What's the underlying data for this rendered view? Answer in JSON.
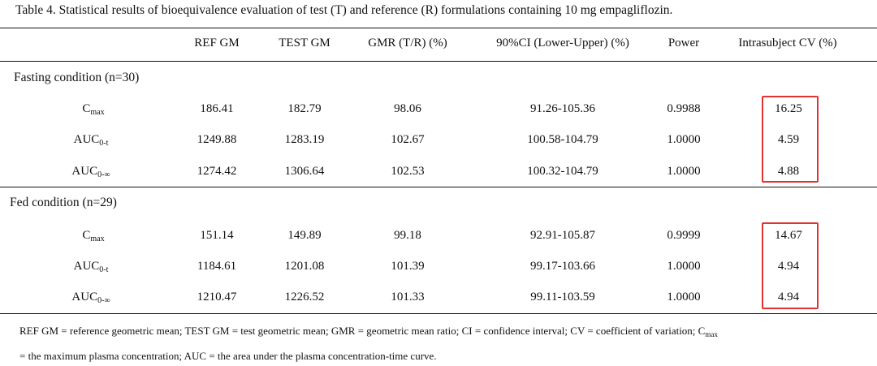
{
  "caption": "Table 4. Statistical results of bioequivalence evaluation of test (T) and reference (R) formulations containing 10 mg empagliflozin.",
  "columns": [
    "REF GM",
    "TEST GM",
    "GMR (T/R) (%)",
    "90%CI (Lower-Upper) (%)",
    "Power",
    "Intrasubject CV (%)"
  ],
  "groups": [
    {
      "label": "Fasting condition (n=30)",
      "rows": [
        {
          "param": "C",
          "param_sub": "max",
          "ref_gm": "186.41",
          "test_gm": "182.79",
          "gmr": "98.06",
          "ci": "91.26-105.36",
          "power": "0.9988",
          "cv": "16.25"
        },
        {
          "param": "AUC",
          "param_sub": "0-t",
          "ref_gm": "1249.88",
          "test_gm": "1283.19",
          "gmr": "102.67",
          "ci": "100.58-104.79",
          "power": "1.0000",
          "cv": "4.59"
        },
        {
          "param": "AUC",
          "param_sub": "0-∞",
          "ref_gm": "1274.42",
          "test_gm": "1306.64",
          "gmr": "102.53",
          "ci": "100.32-104.79",
          "power": "1.0000",
          "cv": "4.88"
        }
      ]
    },
    {
      "label": "Fed condition (n=29)",
      "rows": [
        {
          "param": "C",
          "param_sub": "max",
          "ref_gm": "151.14",
          "test_gm": "149.89",
          "gmr": "99.18",
          "ci": "92.91-105.87",
          "power": "0.9999",
          "cv": "14.67"
        },
        {
          "param": "AUC",
          "param_sub": "0-t",
          "ref_gm": "1184.61",
          "test_gm": "1201.08",
          "gmr": "101.39",
          "ci": "99.17-103.66",
          "power": "1.0000",
          "cv": "4.94"
        },
        {
          "param": "AUC",
          "param_sub": "0-∞",
          "ref_gm": "1210.47",
          "test_gm": "1226.52",
          "gmr": "101.33",
          "ci": "99.11-103.59",
          "power": "1.0000",
          "cv": "4.94"
        }
      ]
    }
  ],
  "footnote": {
    "line1": "REF GM = reference geometric mean; TEST GM = test geometric mean; GMR = geometric mean ratio; CI = confidence interval; CV = coefficient of variation; C",
    "line1_sub": "max",
    "line2": "= the maximum plasma concentration; AUC = the area under the plasma concentration-time curve."
  },
  "highlight_color": "#e0322f"
}
